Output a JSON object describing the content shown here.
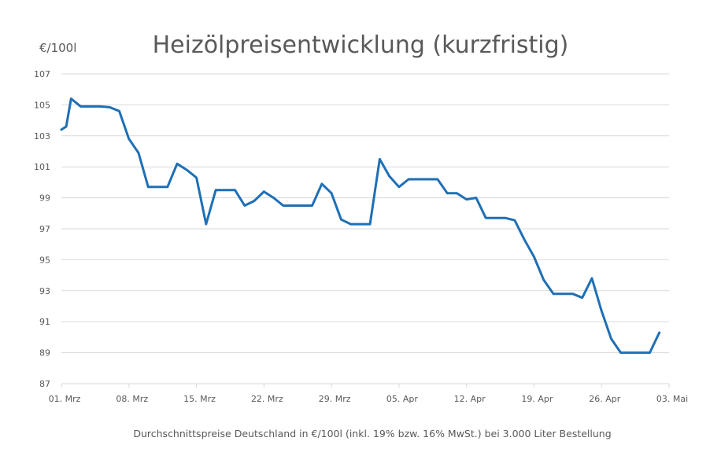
{
  "chart_data": {
    "type": "line",
    "title": "Heizölpreisentwicklung (kurzfristig)",
    "ylabel": "€/100l",
    "footnote": "Durchschnittspreise Deutschland in €/100l (inkl. 19% bzw. 16%  MwSt.) bei 3.000 Liter Bestellung",
    "ylim": [
      87,
      107
    ],
    "yticks": [
      87,
      89,
      91,
      93,
      95,
      97,
      99,
      101,
      103,
      105,
      107
    ],
    "xticks": [
      "01. Mrz",
      "08. Mrz",
      "15. Mrz",
      "22. Mrz",
      "29. Mrz",
      "05. Apr",
      "12. Apr",
      "19. Apr",
      "26. Apr",
      "03. Mai"
    ],
    "grid": true,
    "line_color": "#1f6fb5",
    "grid_color": "#d9d9d9",
    "series": [
      {
        "name": "",
        "points": [
          [
            "2021-03-01",
            103.4
          ],
          [
            "2021-03-01T12",
            103.6
          ],
          [
            "2021-03-02",
            105.4
          ],
          [
            "2021-03-03",
            104.9
          ],
          [
            "2021-03-04",
            104.9
          ],
          [
            "2021-03-05",
            104.9
          ],
          [
            "2021-03-06",
            104.85
          ],
          [
            "2021-03-07",
            104.6
          ],
          [
            "2021-03-08",
            102.8
          ],
          [
            "2021-03-09",
            101.9
          ],
          [
            "2021-03-10",
            99.7
          ],
          [
            "2021-03-11",
            99.7
          ],
          [
            "2021-03-12",
            99.7
          ],
          [
            "2021-03-13",
            101.2
          ],
          [
            "2021-03-14",
            100.8
          ],
          [
            "2021-03-15",
            100.3
          ],
          [
            "2021-03-16",
            97.3
          ],
          [
            "2021-03-17",
            99.5
          ],
          [
            "2021-03-18",
            99.5
          ],
          [
            "2021-03-19",
            99.5
          ],
          [
            "2021-03-20",
            98.5
          ],
          [
            "2021-03-21",
            98.8
          ],
          [
            "2021-03-22",
            99.4
          ],
          [
            "2021-03-23",
            99.0
          ],
          [
            "2021-03-24",
            98.5
          ],
          [
            "2021-03-25",
            98.5
          ],
          [
            "2021-03-26",
            98.5
          ],
          [
            "2021-03-27",
            98.5
          ],
          [
            "2021-03-28",
            99.9
          ],
          [
            "2021-03-29",
            99.3
          ],
          [
            "2021-03-30",
            97.6
          ],
          [
            "2021-03-31",
            97.3
          ],
          [
            "2021-04-01",
            97.3
          ],
          [
            "2021-04-02",
            97.3
          ],
          [
            "2021-04-03",
            101.5
          ],
          [
            "2021-04-04",
            100.4
          ],
          [
            "2021-04-05",
            99.7
          ],
          [
            "2021-04-06",
            100.2
          ],
          [
            "2021-04-07",
            100.2
          ],
          [
            "2021-04-08",
            100.2
          ],
          [
            "2021-04-09",
            100.2
          ],
          [
            "2021-04-10",
            99.3
          ],
          [
            "2021-04-11",
            99.3
          ],
          [
            "2021-04-12",
            98.9
          ],
          [
            "2021-04-13",
            99.0
          ],
          [
            "2021-04-14",
            97.7
          ],
          [
            "2021-04-15",
            97.7
          ],
          [
            "2021-04-16",
            97.7
          ],
          [
            "2021-04-17",
            97.55
          ],
          [
            "2021-04-18",
            96.3
          ],
          [
            "2021-04-19",
            95.2
          ],
          [
            "2021-04-20",
            93.7
          ],
          [
            "2021-04-21",
            92.8
          ],
          [
            "2021-04-22",
            92.8
          ],
          [
            "2021-04-23",
            92.8
          ],
          [
            "2021-04-24",
            92.55
          ],
          [
            "2021-04-25",
            93.8
          ],
          [
            "2021-04-26",
            91.7
          ],
          [
            "2021-04-27",
            89.9
          ],
          [
            "2021-04-28",
            89.0
          ],
          [
            "2021-04-29",
            89.0
          ],
          [
            "2021-04-30",
            89.0
          ],
          [
            "2021-05-01",
            89.0
          ],
          [
            "2021-05-02",
            90.3
          ]
        ]
      }
    ]
  }
}
